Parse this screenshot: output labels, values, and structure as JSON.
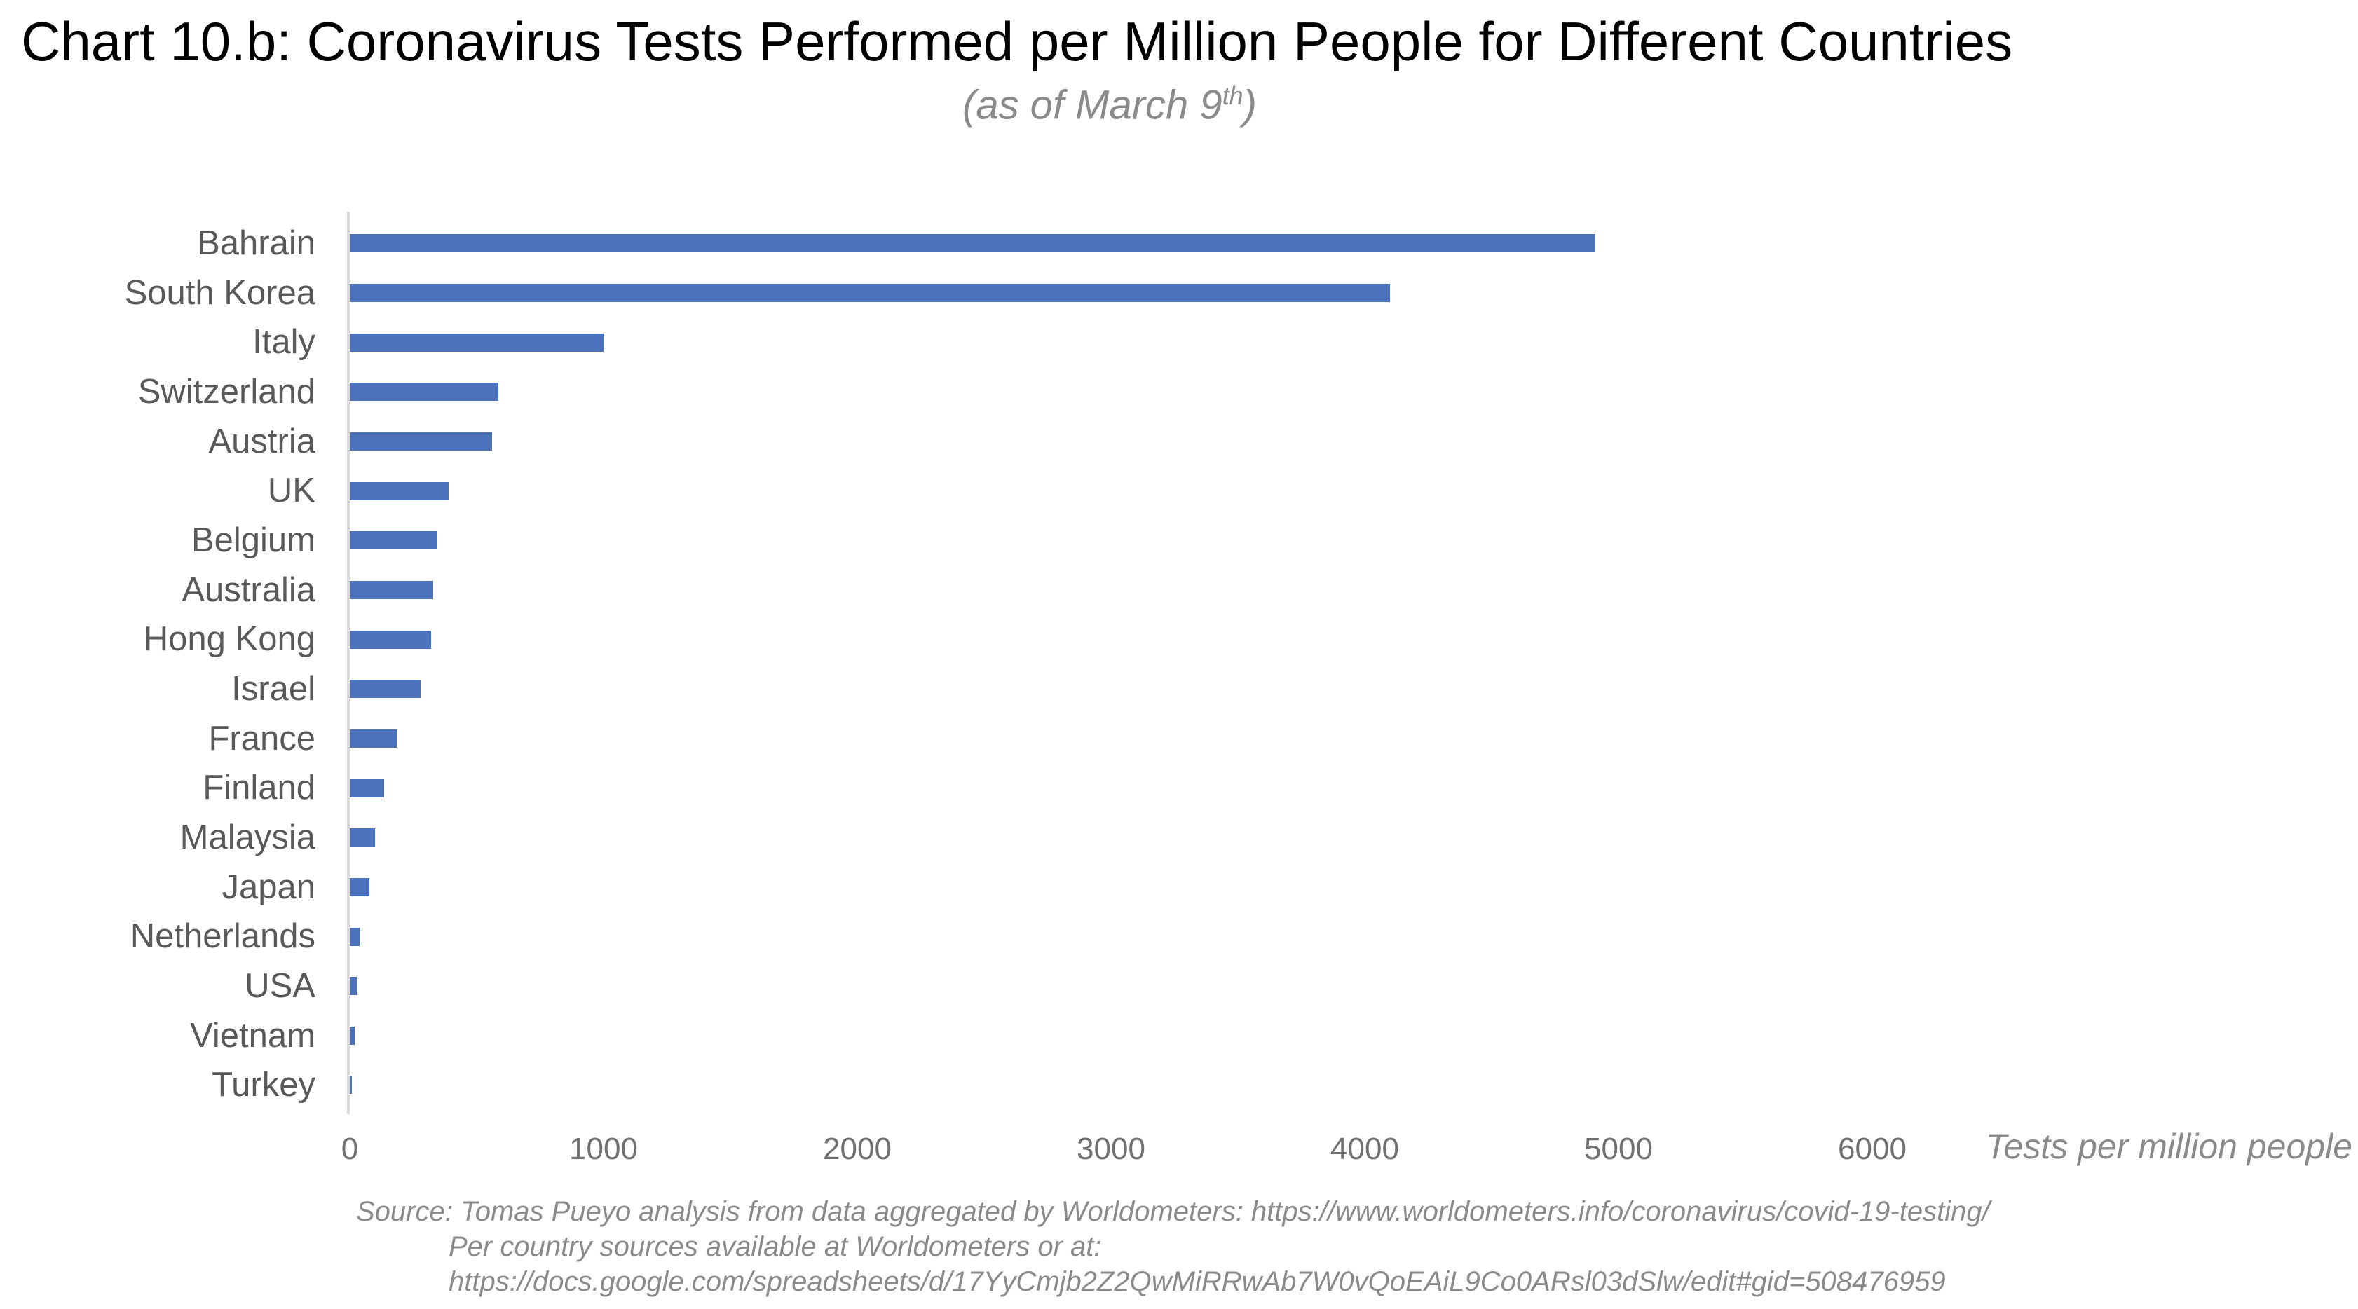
{
  "chart_data": {
    "type": "bar",
    "orientation": "horizontal",
    "title": "Chart 10.b: Coronavirus Tests Performed per Million People for Different Countries",
    "subtitle_plain": "(as of March 9th)",
    "subtitle_parts": {
      "pre": "(as of March 9",
      "sup": "th",
      "post": ")"
    },
    "categories": [
      "Bahrain",
      "South Korea",
      "Italy",
      "Switzerland",
      "Austria",
      "UK",
      "Belgium",
      "Australia",
      "Hong Kong",
      "Israel",
      "France",
      "Finland",
      "Malaysia",
      "Japan",
      "Netherlands",
      "USA",
      "Vietnam",
      "Turkey"
    ],
    "values": [
      4910,
      4100,
      1000,
      585,
      560,
      390,
      345,
      330,
      320,
      280,
      185,
      135,
      100,
      78,
      38,
      28,
      20,
      7
    ],
    "xlabel": "Tests per million people",
    "ylabel": "",
    "x_ticks": [
      "0",
      "1000",
      "2000",
      "3000",
      "4000",
      "5000",
      "6000"
    ],
    "xlim": [
      0,
      6000
    ],
    "grid": false,
    "legend": "none",
    "bar_color": "#4c72bc"
  },
  "source": {
    "line1": "Source: Tomas Pueyo analysis from data aggregated by Worldometers: https://www.worldometers.info/coronavirus/covid-19-testing/",
    "line2": "Per country sources available at Worldometers or at:",
    "line3": "https://docs.google.com/spreadsheets/d/17YyCmjb2Z2QwMiRRwAb7W0vQoEAiL9Co0ARsl03dSlw/edit#gid=508476959"
  },
  "colors": {
    "title": "#000000",
    "subtitle": "#8a8a8a",
    "bar": "#4c72bc",
    "axis_line": "#d9d9d9",
    "category_label": "#595959",
    "tick_label": "#707070",
    "source_text": "#8a8a8a"
  }
}
